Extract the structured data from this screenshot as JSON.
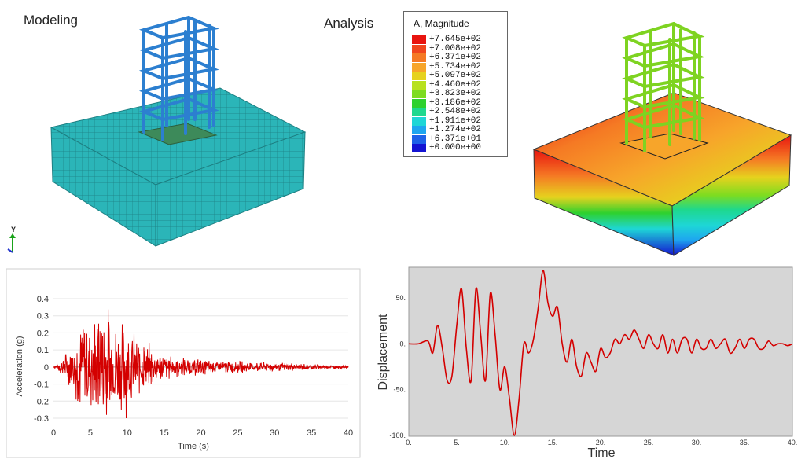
{
  "labels": {
    "left_title": "Modeling",
    "right_title": "Analysis"
  },
  "legend": {
    "title": "A, Magnitude",
    "entries": [
      {
        "value": "+7.645e+02",
        "color": "#e8140f"
      },
      {
        "value": "+7.008e+02",
        "color": "#f0461e"
      },
      {
        "value": "+6.371e+02",
        "color": "#f57a24"
      },
      {
        "value": "+5.734e+02",
        "color": "#f7a52a"
      },
      {
        "value": "+5.097e+02",
        "color": "#e6d21e"
      },
      {
        "value": "+4.460e+02",
        "color": "#b8e11e"
      },
      {
        "value": "+3.823e+02",
        "color": "#7ddc20"
      },
      {
        "value": "+3.186e+02",
        "color": "#2ed12e"
      },
      {
        "value": "+2.548e+02",
        "color": "#1ed88e"
      },
      {
        "value": "+1.911e+02",
        "color": "#1ed6d6"
      },
      {
        "value": "+1.274e+02",
        "color": "#1ea6ef"
      },
      {
        "value": "+6.371e+01",
        "color": "#1e62e8"
      },
      {
        "value": "+0.000e+00",
        "color": "#1414d2"
      }
    ]
  },
  "triad": {
    "axis_label": "Y"
  },
  "colors": {
    "mesh": "#2bb5b8",
    "frame": "#2c7fd0",
    "frame_green": "#7ed321",
    "signal": "#d40000"
  },
  "chart_data": [
    {
      "type": "line",
      "xlabel": "Time (s)",
      "ylabel": "Acceleration (g)",
      "xlim": [
        0,
        40
      ],
      "ylim": [
        -0.3,
        0.4
      ],
      "xticks": [
        "0",
        "5",
        "10",
        "15",
        "20",
        "25",
        "30",
        "35",
        "40"
      ],
      "yticks": [
        "0.4",
        "0.3",
        "0.2",
        "0.1",
        "0",
        "-0.1",
        "-0.2",
        "-0.3"
      ],
      "envelope": {
        "t": [
          0,
          1,
          2,
          3,
          4,
          5,
          6,
          7,
          8,
          9,
          10,
          11,
          12,
          13,
          14,
          15,
          18,
          22,
          26,
          30,
          34,
          36,
          38,
          40
        ],
        "amp": [
          0,
          0.03,
          0.08,
          0.15,
          0.22,
          0.2,
          0.24,
          0.3,
          0.22,
          0.2,
          0.22,
          0.15,
          0.12,
          0.1,
          0.08,
          0.06,
          0.04,
          0.03,
          0.025,
          0.02,
          0.015,
          0.012,
          0.008,
          0.005
        ]
      }
    },
    {
      "type": "line",
      "xlabel": "Time",
      "ylabel": "Displacement",
      "xlim": [
        0,
        40
      ],
      "ylim": [
        -100,
        80
      ],
      "xticks": [
        "0.",
        "5.",
        "10.",
        "15.",
        "20.",
        "25.",
        "30.",
        "35.",
        "40."
      ],
      "yticks": [
        "50.",
        "0.",
        "-50.",
        "-100."
      ],
      "x": [
        0,
        1,
        2,
        2.5,
        3,
        3.5,
        4,
        4.5,
        5,
        5.5,
        6,
        6.5,
        7,
        7.5,
        8,
        8.5,
        9,
        9.5,
        10,
        10.5,
        11,
        11.5,
        12,
        12.5,
        13,
        13.5,
        14,
        14.5,
        15,
        15.5,
        16,
        16.5,
        17,
        17.5,
        18,
        18.5,
        19,
        19.5,
        20,
        20.5,
        21,
        21.5,
        22,
        22.5,
        23,
        23.5,
        24,
        24.5,
        25,
        25.5,
        26,
        26.5,
        27,
        27.5,
        28,
        28.5,
        29,
        29.5,
        30,
        30.5,
        31,
        31.5,
        32,
        32.5,
        33,
        33.5,
        34,
        34.5,
        35,
        35.5,
        36,
        36.5,
        37,
        37.5,
        38,
        38.5,
        39,
        39.5,
        40
      ],
      "y": [
        0,
        0,
        3,
        -10,
        20,
        -5,
        -40,
        -35,
        20,
        60,
        -5,
        -40,
        60,
        10,
        -40,
        55,
        10,
        -50,
        -25,
        -60,
        -100,
        -60,
        0,
        -10,
        5,
        40,
        80,
        45,
        30,
        40,
        0,
        -20,
        5,
        -25,
        -35,
        -10,
        -20,
        -30,
        -5,
        -15,
        -10,
        5,
        0,
        10,
        5,
        15,
        5,
        -5,
        10,
        0,
        -5,
        10,
        -10,
        5,
        -10,
        5,
        5,
        -10,
        5,
        -5,
        -5,
        5,
        -5,
        0,
        5,
        -10,
        -5,
        5,
        -5,
        5,
        5,
        -5,
        -5,
        3,
        -2,
        0,
        0,
        -2,
        0
      ]
    }
  ]
}
